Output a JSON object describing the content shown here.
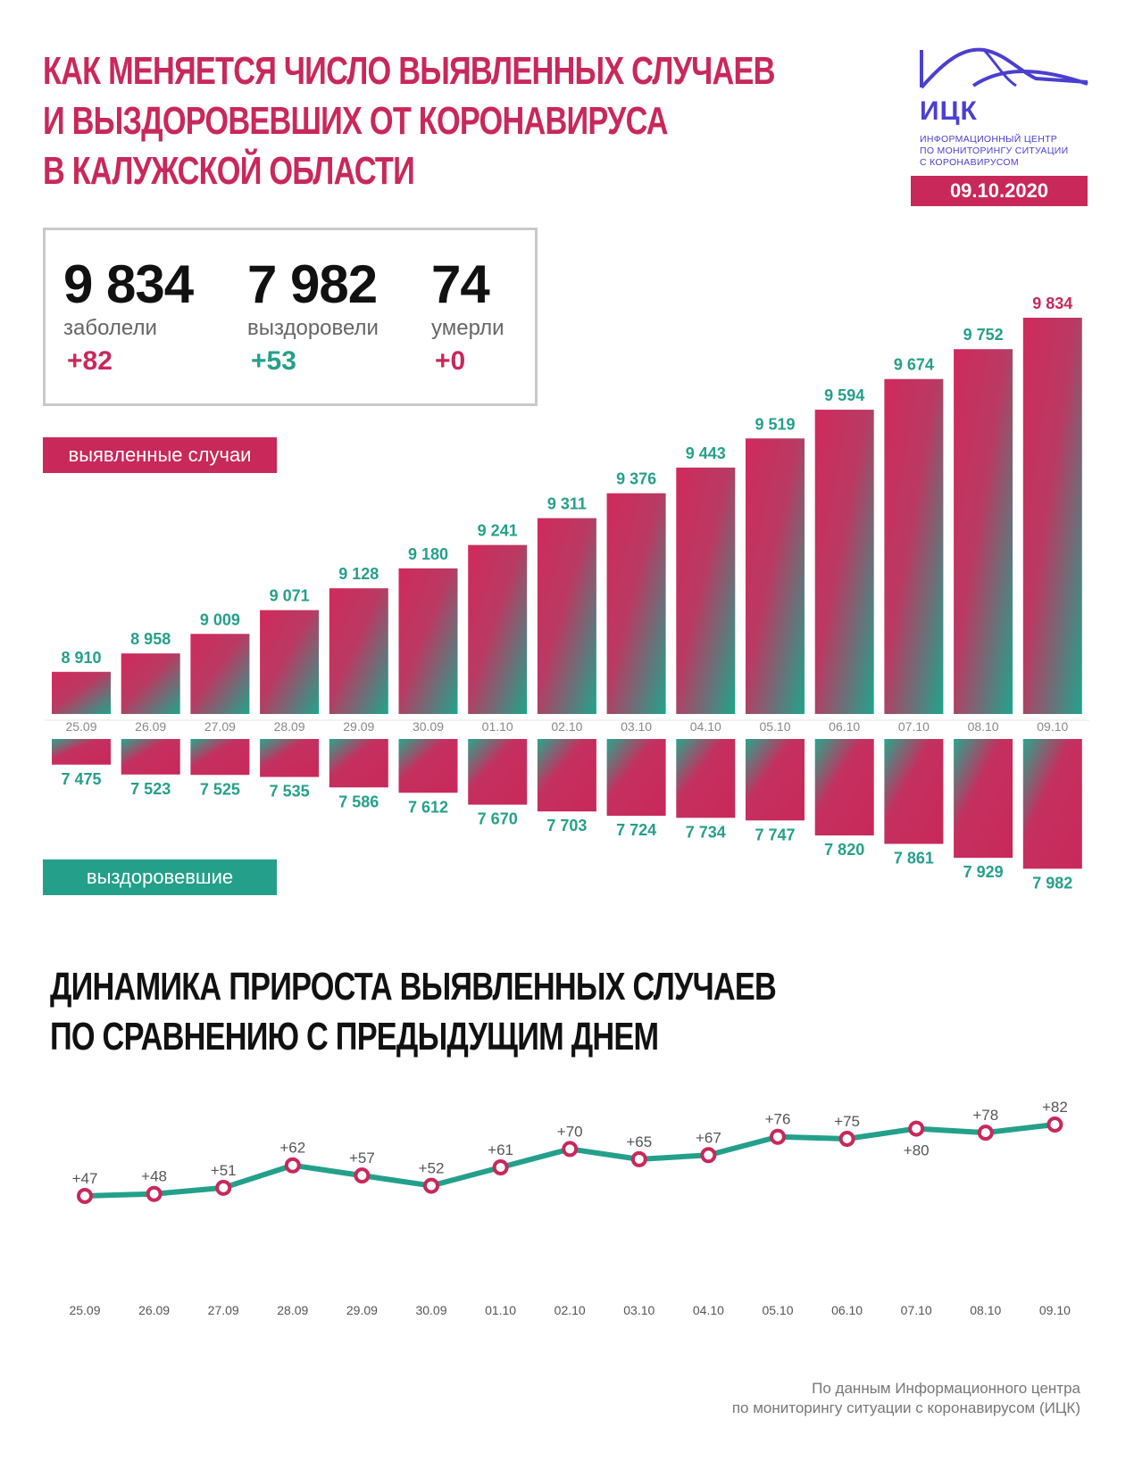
{
  "title": {
    "line1": "КАК МЕНЯЕТСЯ ЧИСЛО ВЫЯВЛЕННЫХ СЛУЧАЕВ",
    "line2": "И ВЫЗДОРОВЕВШИХ ОТ КОРОНАВИРУСА",
    "line3": "В КАЛУЖСКОЙ ОБЛАСТИ"
  },
  "logo": {
    "name": "ИЦК",
    "sub1": "ИНФОРМАЦИОННЫЙ ЦЕНТР",
    "sub2": "ПО МОНИТОРИНГУ СИТУАЦИИ",
    "sub3": "С КОРОНАВИРУСОМ",
    "icon": "bridge-wave-logo-icon"
  },
  "date": "09.10.2020",
  "stats": {
    "cases": {
      "value": "9 834",
      "label": "заболели",
      "delta": "+82"
    },
    "recovered": {
      "value": "7 982",
      "label": "выздоровели",
      "delta": "+53"
    },
    "deaths": {
      "value": "74",
      "label": "умерли",
      "delta": "+0"
    }
  },
  "legend": {
    "cases_label": "выявленные случаи",
    "recovered_label": "выздоровевшие"
  },
  "subtitle": {
    "line1": "ДИНАМИКА ПРИРОСТА ВЫЯВЛЕННЫХ СЛУЧАЕВ",
    "line2": "ПО СРАВНЕНИЮ С ПРЕДЫДУЩИМ ДНЕМ"
  },
  "source": {
    "line1": "По данным Информационного центра",
    "line2": "по мониторингу ситуации с коронавирусом (ИЦК)"
  },
  "colors": {
    "accent": "#c8285a",
    "teal": "#24a08a",
    "logo": "#4b3fd1"
  },
  "chart_data": [
    {
      "type": "bar",
      "categories": [
        "25.09",
        "26.09",
        "27.09",
        "28.09",
        "29.09",
        "30.09",
        "01.10",
        "02.10",
        "03.10",
        "04.10",
        "05.10",
        "06.10",
        "07.10",
        "08.10",
        "09.10"
      ],
      "series": [
        {
          "name": "выявленные случаи",
          "values": [
            8910,
            8958,
            9009,
            9071,
            9128,
            9180,
            9241,
            9311,
            9376,
            9443,
            9519,
            9594,
            9674,
            9752,
            9834
          ],
          "labels": [
            "8 910",
            "8 958",
            "9 009",
            "9 071",
            "9 128",
            "9 180",
            "9 241",
            "9 311",
            "9 376",
            "9 443",
            "9 519",
            "9 594",
            "9 674",
            "9 752",
            "9 834"
          ]
        },
        {
          "name": "выздоровевшие",
          "values": [
            7475,
            7523,
            7525,
            7535,
            7586,
            7612,
            7670,
            7703,
            7724,
            7734,
            7747,
            7820,
            7861,
            7929,
            7982
          ],
          "labels": [
            "7 475",
            "7 523",
            "7 525",
            "7 535",
            "7 586",
            "7 612",
            "7 670",
            "7 703",
            "7 724",
            "7 734",
            "7 747",
            "7 820",
            "7 861",
            "7 929",
            "7 982"
          ]
        }
      ]
    },
    {
      "type": "line",
      "categories": [
        "25.09",
        "26.09",
        "27.09",
        "28.09",
        "29.09",
        "30.09",
        "01.10",
        "02.10",
        "03.10",
        "04.10",
        "05.10",
        "06.10",
        "07.10",
        "08.10",
        "09.10"
      ],
      "values": [
        47,
        48,
        51,
        62,
        57,
        52,
        61,
        70,
        65,
        67,
        76,
        75,
        80,
        78,
        82
      ],
      "labels": [
        "+47",
        "+48",
        "+51",
        "+62",
        "+57",
        "+52",
        "+61",
        "+70",
        "+65",
        "+67",
        "+76",
        "+75",
        "+80",
        "+78",
        "+82"
      ]
    }
  ]
}
